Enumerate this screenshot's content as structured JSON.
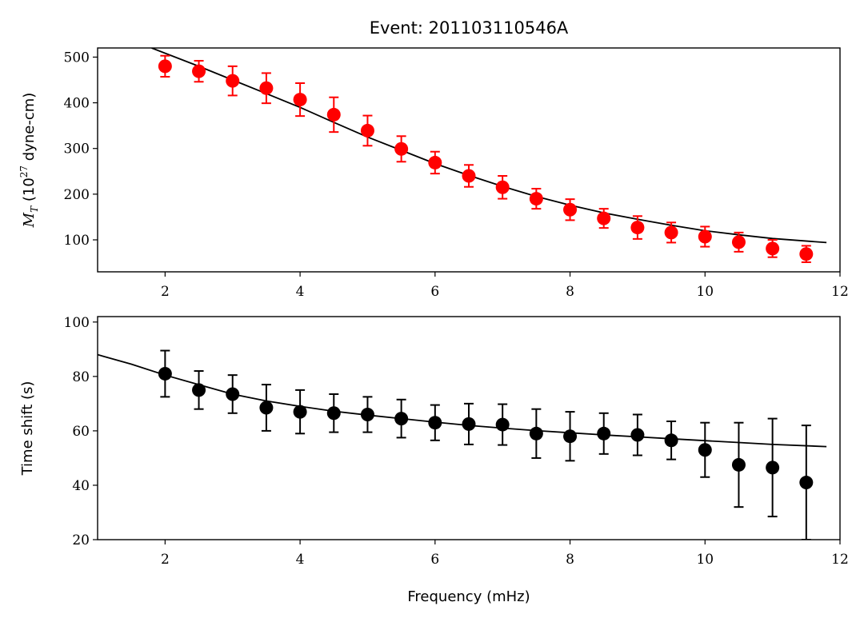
{
  "chart_data": [
    {
      "type": "scatter",
      "title": "Event: 201103110546A",
      "xlabel": "",
      "ylabel": "M_T (10^27 dyne-cm)",
      "ylabel_parts": {
        "symbol": "M",
        "sub": "T",
        "pre": " (10",
        "sup": "27",
        "post": " dyne-cm)"
      },
      "xlim": [
        1,
        12
      ],
      "ylim": [
        30,
        520
      ],
      "xticks": [
        2,
        4,
        6,
        8,
        10,
        12
      ],
      "yticks": [
        100,
        200,
        300,
        400,
        500
      ],
      "grid": false,
      "marker_color": "#ff0000",
      "points": {
        "x": [
          2,
          2.5,
          3,
          3.5,
          4,
          4.5,
          5,
          5.5,
          6,
          6.5,
          7,
          7.5,
          8,
          8.5,
          9,
          9.5,
          10,
          10.5,
          11,
          11.5
        ],
        "y": [
          480,
          469,
          448,
          432,
          407,
          374,
          339,
          299,
          269,
          240,
          215,
          190,
          166,
          147,
          127,
          116,
          107,
          95,
          81,
          69
        ],
        "err": [
          23,
          23,
          32,
          33,
          36,
          38,
          33,
          28,
          24,
          24,
          25,
          22,
          23,
          21,
          25,
          22,
          22,
          21,
          19,
          18
        ]
      },
      "fit_line": {
        "x": [
          1.8,
          2.5,
          3,
          3.5,
          4,
          4.5,
          5,
          5.5,
          6,
          6.5,
          7,
          7.5,
          8,
          8.5,
          9,
          9.5,
          10,
          10.5,
          11,
          11.8
        ],
        "y": [
          520,
          480,
          450,
          420,
          390,
          357,
          325,
          296,
          267,
          241,
          217,
          195,
          176,
          159,
          145,
          132,
          120,
          111,
          103,
          94
        ]
      }
    },
    {
      "type": "scatter",
      "title": "",
      "xlabel": "Frequency (mHz)",
      "ylabel": "Time shift (s)",
      "xlim": [
        1,
        12
      ],
      "ylim": [
        20,
        102
      ],
      "xticks": [
        2,
        4,
        6,
        8,
        10,
        12
      ],
      "yticks": [
        20,
        40,
        60,
        80,
        100
      ],
      "grid": false,
      "marker_color": "#000000",
      "points": {
        "x": [
          2,
          2.5,
          3,
          3.5,
          4,
          4.5,
          5,
          5.5,
          6,
          6.5,
          7,
          7.5,
          8,
          8.5,
          9,
          9.5,
          10,
          10.5,
          11,
          11.5
        ],
        "y": [
          81,
          75,
          73.5,
          68.5,
          67,
          66.5,
          66,
          64.5,
          63,
          62.5,
          62.3,
          59,
          58,
          59,
          58.5,
          56.5,
          53,
          47.5,
          46.5,
          41
        ],
        "err": [
          8.5,
          7,
          7,
          8.5,
          8,
          7,
          6.5,
          7,
          6.5,
          7.5,
          7.5,
          9,
          9,
          7.5,
          7.5,
          7,
          10,
          15.5,
          18,
          21
        ]
      },
      "fit_line": {
        "x": [
          1,
          1.5,
          2,
          2.5,
          3,
          3.5,
          4,
          4.5,
          5,
          5.5,
          6,
          6.5,
          7,
          7.5,
          8,
          8.5,
          9,
          9.5,
          10,
          10.5,
          11,
          11.8
        ],
        "y": [
          88,
          84.5,
          80.5,
          77,
          73.5,
          71,
          69,
          67.2,
          65.8,
          64.5,
          63.2,
          62,
          61,
          60.1,
          59.3,
          58.5,
          57.8,
          57.1,
          56.4,
          55.7,
          55,
          54.2
        ]
      }
    }
  ]
}
